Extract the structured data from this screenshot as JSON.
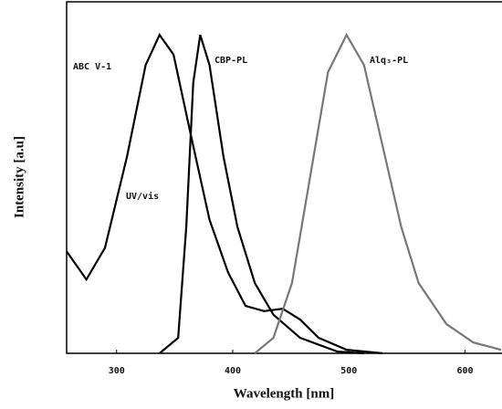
{
  "chart_data": {
    "type": "line",
    "xlabel": "Wavelength [nm]",
    "ylabel": "Intensity [a.u]",
    "xlim": [
      257,
      631
    ],
    "ylim": [
      0,
      1
    ],
    "xticks": [
      300,
      400,
      500,
      600
    ],
    "annotations": [
      "UV/vis"
    ],
    "series": [
      {
        "name": "ABC V-1",
        "color": "#000000",
        "x": [
          257,
          274,
          290,
          309,
          325,
          337,
          349,
          364,
          380,
          396,
          411,
          427,
          443,
          458,
          474,
          498,
          529
        ],
        "values": [
          0.29,
          0.21,
          0.3,
          0.56,
          0.82,
          0.906,
          0.85,
          0.62,
          0.38,
          0.23,
          0.135,
          0.12,
          0.127,
          0.096,
          0.044,
          0.01,
          0
        ]
      },
      {
        "name": "CBP-PL",
        "color": "#000000",
        "x": [
          337,
          353,
          360,
          366,
          372,
          380,
          392,
          404,
          419,
          435,
          458,
          490,
          513
        ],
        "values": [
          0,
          0.044,
          0.36,
          0.77,
          0.906,
          0.82,
          0.56,
          0.36,
          0.2,
          0.11,
          0.044,
          0.005,
          0
        ]
      },
      {
        "name": "Alq₃-PL",
        "color": "#777777",
        "x": [
          419,
          435,
          451,
          466,
          482,
          498,
          513,
          529,
          545,
          560,
          584,
          607,
          631
        ],
        "values": [
          0,
          0.044,
          0.2,
          0.49,
          0.8,
          0.906,
          0.82,
          0.59,
          0.36,
          0.2,
          0.083,
          0.031,
          0.01
        ]
      }
    ]
  }
}
